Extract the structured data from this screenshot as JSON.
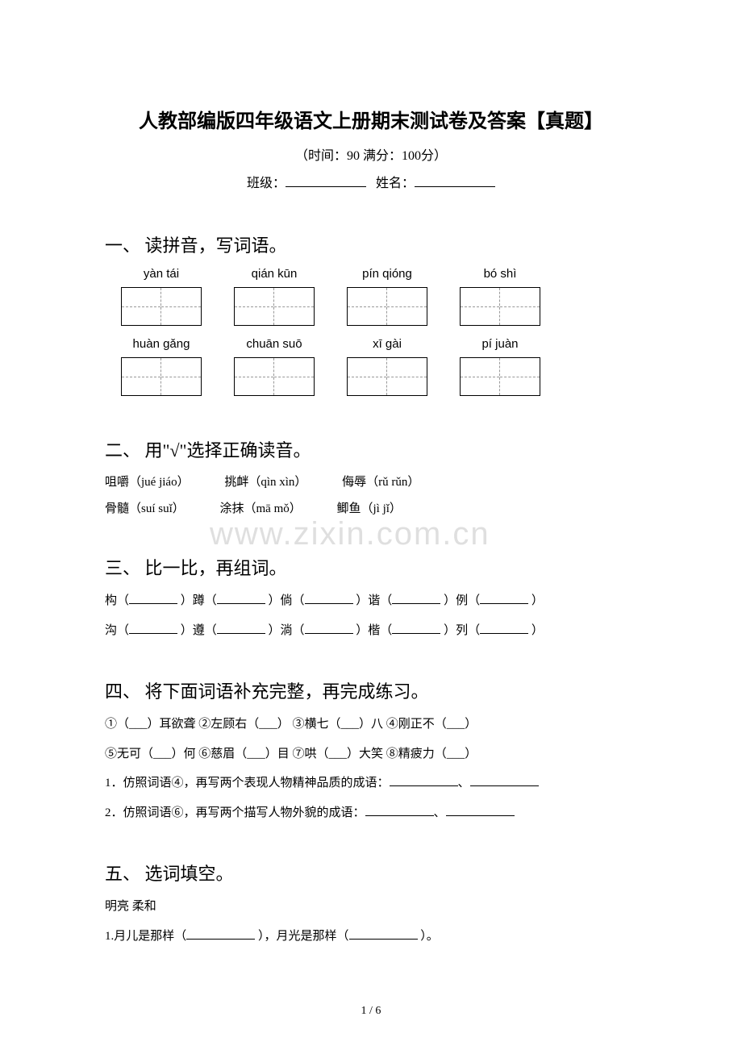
{
  "title": "人教部编版四年级语文上册期末测试卷及答案【真题】",
  "meta": "（时间：90   满分：100分）",
  "form": {
    "class_label": "班级：",
    "name_label": "姓名："
  },
  "watermark": "www.zixin.com.cn",
  "footer": "1 / 6",
  "sections": {
    "s1": {
      "heading": "一、 读拼音，写词语。",
      "row1": [
        "yàn tái",
        "qián kūn",
        "pín qióng",
        "bó shì"
      ],
      "row2": [
        "huàn gǎng",
        "chuān suō",
        "xī gài",
        "pí juàn"
      ]
    },
    "s2": {
      "heading": "二、 用\"√\"选择正确读音。",
      "items": [
        {
          "a": "咀嚼（jué jiáo）",
          "b": "挑衅（qìn xìn）",
          "c": "侮辱（rǔ rǔn）"
        },
        {
          "a": "骨髓（suí suǐ）",
          "b": "涂抹（mā mǒ）",
          "c": "鲫鱼（jì jǐ）"
        }
      ]
    },
    "s3": {
      "heading": "三、 比一比，再组词。",
      "row1": [
        "构（",
        "）蹲（",
        "）倘（",
        "）谐（",
        "）例（",
        "）"
      ],
      "row2": [
        "沟（",
        "）遵（",
        "）淌（",
        "）楷（",
        "）列（",
        "）"
      ]
    },
    "s4": {
      "heading": "四、 将下面词语补充完整，再完成练习。",
      "line1": "①（___）耳欲聋  ②左顾右（___） ③横七（___）八  ④刚正不（___）",
      "line2": "⑤无可（___）何  ⑥慈眉（___）目 ⑦哄（___）大笑  ⑧精疲力（___）",
      "q1": "1．仿照词语④，再写两个表现人物精神品质的成语：",
      "q2": "2．仿照词语⑥，再写两个描写人物外貌的成语："
    },
    "s5": {
      "heading": "五、 选词填空。",
      "words": "明亮     柔和",
      "q1a": "1.月儿是那样（",
      "q1b": "），月光是那样（",
      "q1c": "）。"
    }
  }
}
